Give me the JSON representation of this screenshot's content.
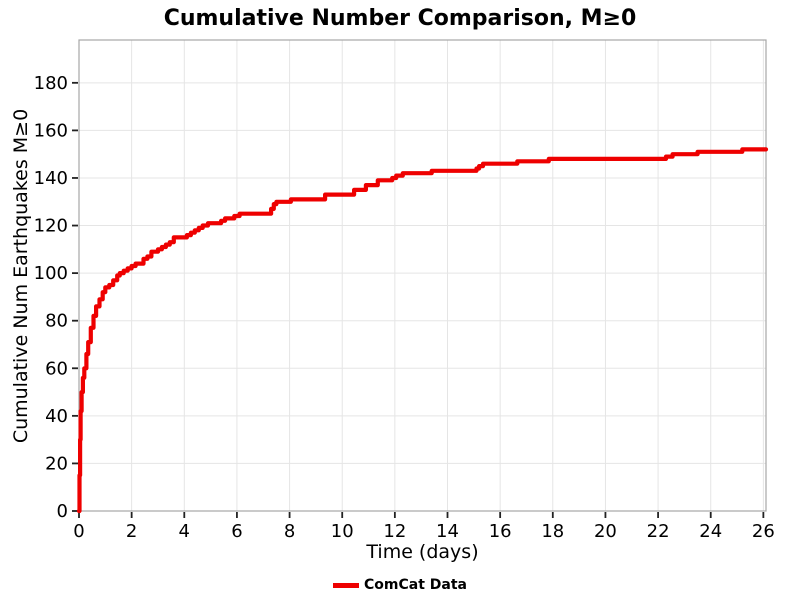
{
  "title": "Cumulative Number Comparison, M≥0",
  "colors": {
    "line": "#ee0000",
    "grid": "#e5e5e5",
    "spine": "#a6a6a6",
    "tick": "#222222",
    "text": "#000000",
    "background": "#ffffff"
  },
  "chart_data": {
    "type": "line",
    "style": "step-after",
    "title": "Cumulative Number Comparison, M≥0",
    "xlabel": "Time (days)",
    "ylabel": "Cumulative Num Earthquakes M≥0",
    "xlim": [
      0,
      26.1
    ],
    "ylim": [
      0,
      198
    ],
    "x_ticks": [
      0,
      2,
      4,
      6,
      8,
      10,
      12,
      14,
      16,
      18,
      20,
      22,
      24,
      26
    ],
    "y_ticks": [
      0,
      20,
      40,
      60,
      80,
      100,
      120,
      140,
      160,
      180
    ],
    "grid": true,
    "legend": {
      "position": "bottom-center",
      "entries": [
        {
          "label": "ComCat Data",
          "color": "#ee0000"
        }
      ]
    },
    "series": [
      {
        "name": "ComCat Data",
        "color": "#ee0000",
        "line_width": 4.2,
        "points": [
          [
            0.0,
            0
          ],
          [
            0.02,
            15
          ],
          [
            0.04,
            30
          ],
          [
            0.06,
            42
          ],
          [
            0.1,
            50
          ],
          [
            0.15,
            56
          ],
          [
            0.2,
            60
          ],
          [
            0.28,
            66
          ],
          [
            0.35,
            71
          ],
          [
            0.45,
            77
          ],
          [
            0.55,
            82
          ],
          [
            0.65,
            86
          ],
          [
            0.78,
            89
          ],
          [
            0.9,
            92
          ],
          [
            1.0,
            94
          ],
          [
            1.15,
            95
          ],
          [
            1.3,
            97
          ],
          [
            1.45,
            99
          ],
          [
            1.55,
            100
          ],
          [
            1.7,
            101
          ],
          [
            1.85,
            102
          ],
          [
            2.0,
            103
          ],
          [
            2.15,
            104
          ],
          [
            2.45,
            106
          ],
          [
            2.6,
            107
          ],
          [
            2.75,
            109
          ],
          [
            3.0,
            110
          ],
          [
            3.15,
            111
          ],
          [
            3.3,
            112
          ],
          [
            3.45,
            113
          ],
          [
            3.6,
            115
          ],
          [
            4.1,
            116
          ],
          [
            4.25,
            117
          ],
          [
            4.4,
            118
          ],
          [
            4.55,
            119
          ],
          [
            4.7,
            120
          ],
          [
            4.9,
            121
          ],
          [
            5.4,
            122
          ],
          [
            5.55,
            123
          ],
          [
            5.9,
            124
          ],
          [
            6.1,
            125
          ],
          [
            7.3,
            127
          ],
          [
            7.4,
            129
          ],
          [
            7.5,
            130
          ],
          [
            8.05,
            131
          ],
          [
            9.35,
            133
          ],
          [
            10.45,
            135
          ],
          [
            10.9,
            137
          ],
          [
            11.35,
            139
          ],
          [
            11.9,
            140
          ],
          [
            12.05,
            141
          ],
          [
            12.3,
            142
          ],
          [
            13.4,
            143
          ],
          [
            15.1,
            144
          ],
          [
            15.2,
            145
          ],
          [
            15.35,
            146
          ],
          [
            16.65,
            147
          ],
          [
            17.85,
            148
          ],
          [
            22.3,
            149
          ],
          [
            22.55,
            150
          ],
          [
            23.5,
            151
          ],
          [
            25.2,
            152
          ],
          [
            26.1,
            152
          ]
        ]
      }
    ]
  }
}
